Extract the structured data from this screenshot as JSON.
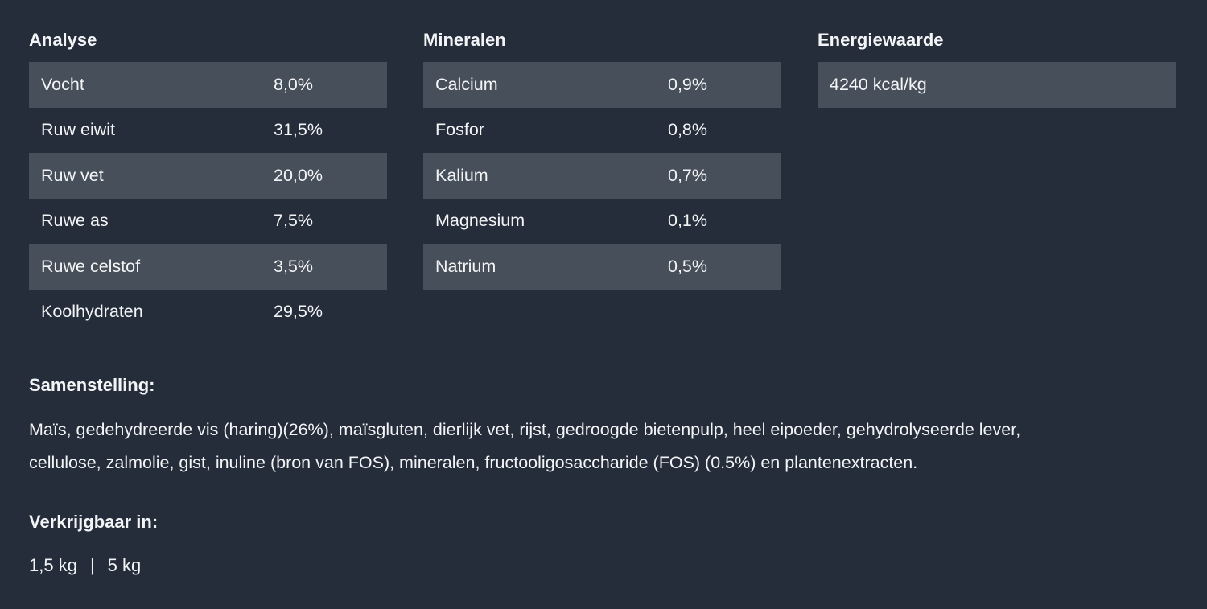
{
  "analyse": {
    "title": "Analyse",
    "rows": [
      {
        "label": "Vocht",
        "value": "8,0%"
      },
      {
        "label": "Ruw eiwit",
        "value": "31,5%"
      },
      {
        "label": "Ruw vet",
        "value": "20,0%"
      },
      {
        "label": "Ruwe as",
        "value": "7,5%"
      },
      {
        "label": "Ruwe celstof",
        "value": "3,5%"
      },
      {
        "label": "Koolhydraten",
        "value": "29,5%"
      }
    ]
  },
  "mineralen": {
    "title": "Mineralen",
    "rows": [
      {
        "label": "Calcium",
        "value": "0,9%"
      },
      {
        "label": "Fosfor",
        "value": "0,8%"
      },
      {
        "label": "Kalium",
        "value": "0,7%"
      },
      {
        "label": "Magnesium",
        "value": "0,1%"
      },
      {
        "label": "Natrium",
        "value": "0,5%"
      }
    ]
  },
  "energie": {
    "title": "Energiewaarde",
    "value": "4240 kcal/kg"
  },
  "samenstelling": {
    "title": "Samenstelling:",
    "lines": [
      "Maïs, gedehydreerde vis (haring)(26%), maïsgluten, dierlijk vet, rijst, gedroogde bietenpulp, heel eipoeder, gehydrolyseerde lever,",
      "cellulose, zalmolie, gist, inuline (bron van FOS), mineralen, fructooligosaccharide (FOS) (0.5%) en plantenextracten."
    ]
  },
  "verkrijgbaar": {
    "title": "Verkrijgbaar in:",
    "sizes": [
      "1,5 kg",
      "5 kg"
    ],
    "separator": "|"
  },
  "colors": {
    "background": "#252d3a",
    "row_band": "#474f5a",
    "text": "#f2f4f6"
  }
}
